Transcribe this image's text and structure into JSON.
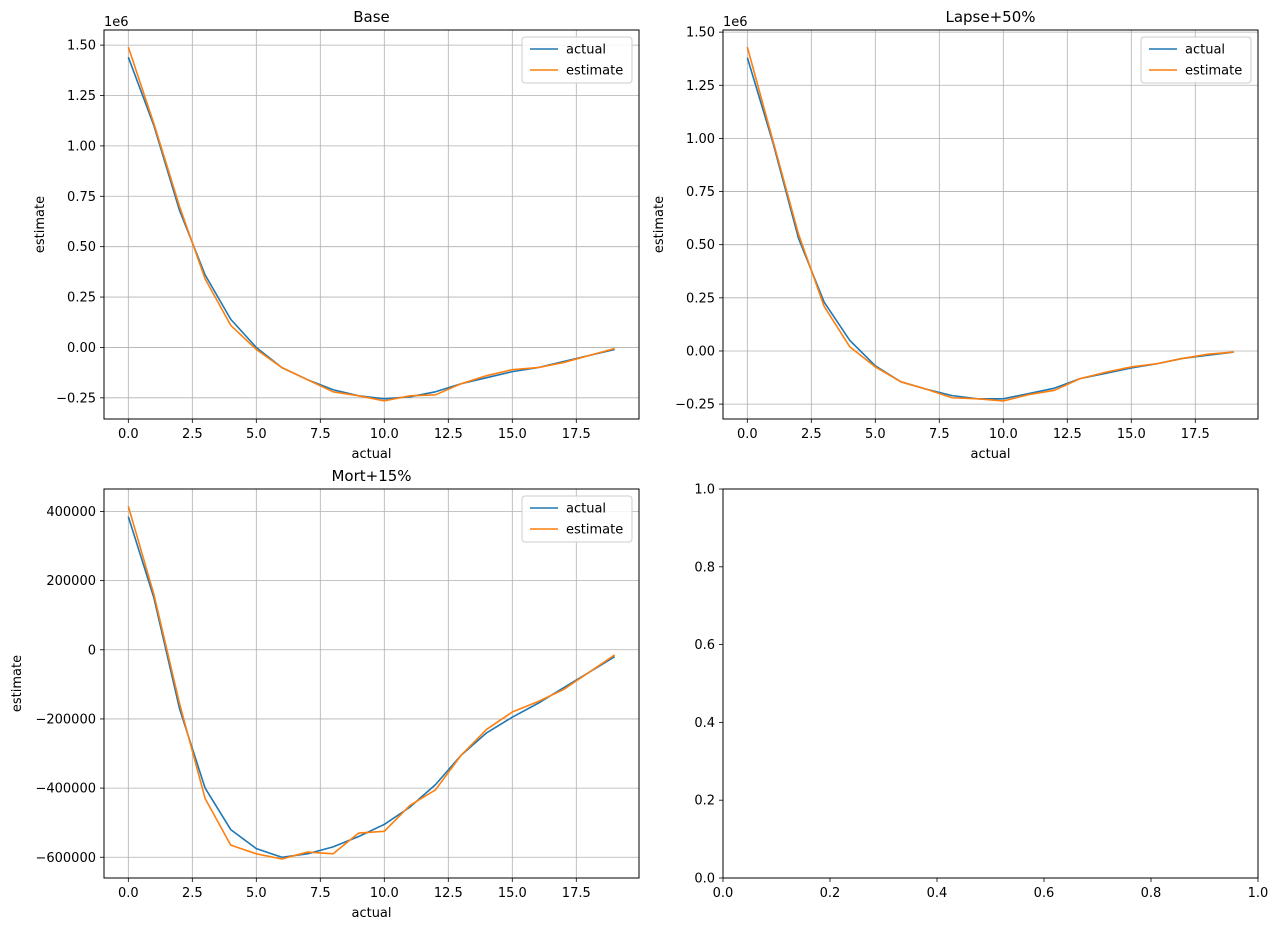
{
  "chart_data": [
    {
      "type": "line",
      "title": "Base",
      "xlabel": "actual",
      "ylabel": "estimate",
      "y_offset_label": "1e6",
      "xlim": [
        -0.95,
        19.95
      ],
      "ylim": [
        -0.355,
        1.575
      ],
      "xticks": [
        0.0,
        2.5,
        5.0,
        7.5,
        10.0,
        12.5,
        15.0,
        17.5
      ],
      "xtick_labels": [
        "0.0",
        "2.5",
        "5.0",
        "7.5",
        "10.0",
        "12.5",
        "15.0",
        "17.5"
      ],
      "yticks": [
        -0.25,
        0.0,
        0.25,
        0.5,
        0.75,
        1.0,
        1.25,
        1.5
      ],
      "ytick_labels": [
        "−0.25",
        "0.00",
        "0.25",
        "0.50",
        "0.75",
        "1.00",
        "1.25",
        "1.50"
      ],
      "grid": true,
      "legend": "upper right",
      "x": [
        0,
        1,
        2,
        3,
        4,
        5,
        6,
        7,
        8,
        9,
        10,
        11,
        12,
        13,
        14,
        15,
        16,
        17,
        18,
        19
      ],
      "series": [
        {
          "name": "actual",
          "color": "#1f77b4",
          "values": [
            1.44,
            1.1,
            0.68,
            0.36,
            0.14,
            0.0,
            -0.1,
            -0.16,
            -0.21,
            -0.24,
            -0.255,
            -0.245,
            -0.22,
            -0.18,
            -0.15,
            -0.12,
            -0.1,
            -0.07,
            -0.04,
            -0.01
          ]
        },
        {
          "name": "estimate",
          "color": "#ff7f0e",
          "values": [
            1.49,
            1.11,
            0.7,
            0.34,
            0.11,
            -0.01,
            -0.1,
            -0.16,
            -0.22,
            -0.24,
            -0.265,
            -0.24,
            -0.235,
            -0.18,
            -0.14,
            -0.11,
            -0.1,
            -0.075,
            -0.04,
            -0.005
          ]
        }
      ]
    },
    {
      "type": "line",
      "title": "Lapse+50%",
      "xlabel": "actual",
      "ylabel": "estimate",
      "y_offset_label": "1e6",
      "xlim": [
        -0.95,
        19.95
      ],
      "ylim": [
        -0.32,
        1.51
      ],
      "xticks": [
        0.0,
        2.5,
        5.0,
        7.5,
        10.0,
        12.5,
        15.0,
        17.5
      ],
      "xtick_labels": [
        "0.0",
        "2.5",
        "5.0",
        "7.5",
        "10.0",
        "12.5",
        "15.0",
        "17.5"
      ],
      "yticks": [
        -0.25,
        0.0,
        0.25,
        0.5,
        0.75,
        1.0,
        1.25,
        1.5
      ],
      "ytick_labels": [
        "−0.25",
        "0.00",
        "0.25",
        "0.50",
        "0.75",
        "1.00",
        "1.25",
        "1.50"
      ],
      "grid": true,
      "legend": "upper right",
      "x": [
        0,
        1,
        2,
        3,
        4,
        5,
        6,
        7,
        8,
        9,
        10,
        11,
        12,
        13,
        14,
        15,
        16,
        17,
        18,
        19
      ],
      "series": [
        {
          "name": "actual",
          "color": "#1f77b4",
          "values": [
            1.38,
            0.98,
            0.53,
            0.23,
            0.05,
            -0.07,
            -0.145,
            -0.18,
            -0.21,
            -0.225,
            -0.225,
            -0.2,
            -0.175,
            -0.13,
            -0.105,
            -0.08,
            -0.06,
            -0.035,
            -0.02,
            -0.005
          ]
        },
        {
          "name": "estimate",
          "color": "#ff7f0e",
          "values": [
            1.43,
            0.99,
            0.55,
            0.21,
            0.02,
            -0.075,
            -0.145,
            -0.18,
            -0.22,
            -0.225,
            -0.235,
            -0.205,
            -0.185,
            -0.13,
            -0.1,
            -0.075,
            -0.06,
            -0.035,
            -0.015,
            -0.005
          ]
        }
      ]
    },
    {
      "type": "line",
      "title": "Mort+15%",
      "xlabel": "actual",
      "ylabel": "estimate",
      "y_offset_label": "",
      "xlim": [
        -0.95,
        19.95
      ],
      "ylim": [
        -660000,
        465000
      ],
      "xticks": [
        0.0,
        2.5,
        5.0,
        7.5,
        10.0,
        12.5,
        15.0,
        17.5
      ],
      "xtick_labels": [
        "0.0",
        "2.5",
        "5.0",
        "7.5",
        "10.0",
        "12.5",
        "15.0",
        "17.5"
      ],
      "yticks": [
        -600000,
        -400000,
        -200000,
        0,
        200000,
        400000
      ],
      "ytick_labels": [
        "−600000",
        "−400000",
        "−200000",
        "0",
        "200000",
        "400000"
      ],
      "grid": true,
      "legend": "upper right",
      "x": [
        0,
        1,
        2,
        3,
        4,
        5,
        6,
        7,
        8,
        9,
        10,
        11,
        12,
        13,
        14,
        15,
        16,
        17,
        18,
        19
      ],
      "series": [
        {
          "name": "actual",
          "color": "#1f77b4",
          "values": [
            385000,
            150000,
            -170000,
            -400000,
            -520000,
            -575000,
            -600000,
            -590000,
            -570000,
            -540000,
            -505000,
            -455000,
            -390000,
            -305000,
            -240000,
            -195000,
            -155000,
            -110000,
            -65000,
            -20000
          ]
        },
        {
          "name": "estimate",
          "color": "#ff7f0e",
          "values": [
            415000,
            160000,
            -155000,
            -430000,
            -565000,
            -590000,
            -605000,
            -585000,
            -590000,
            -530000,
            -525000,
            -450000,
            -405000,
            -305000,
            -230000,
            -180000,
            -150000,
            -115000,
            -65000,
            -15000
          ]
        }
      ]
    },
    {
      "type": "line",
      "title": "",
      "xlabel": "",
      "ylabel": "",
      "xlim": [
        0,
        1
      ],
      "ylim": [
        0,
        1
      ],
      "xticks": [
        0.0,
        0.2,
        0.4,
        0.6,
        0.8,
        1.0
      ],
      "xtick_labels": [
        "0.0",
        "0.2",
        "0.4",
        "0.6",
        "0.8",
        "1.0"
      ],
      "yticks": [
        0.0,
        0.2,
        0.4,
        0.6,
        0.8,
        1.0
      ],
      "ytick_labels": [
        "0.0",
        "0.2",
        "0.4",
        "0.6",
        "0.8",
        "1.0"
      ],
      "grid": false,
      "series": []
    }
  ]
}
